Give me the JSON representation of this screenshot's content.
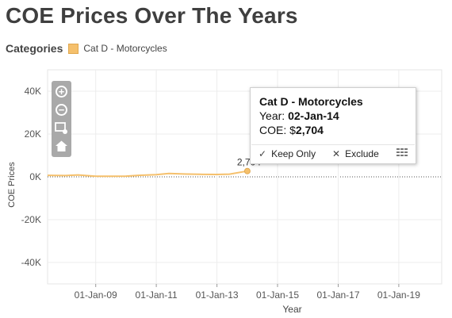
{
  "title": "COE Prices Over The Years",
  "legend": {
    "title": "Categories",
    "items": [
      {
        "label": "Cat D - Motorcycles",
        "color": "#f5c06c"
      }
    ]
  },
  "zoom_tools": [
    {
      "name": "zoom-in",
      "icon": "plus-icon"
    },
    {
      "name": "zoom-out",
      "icon": "minus-icon"
    },
    {
      "name": "area-zoom",
      "icon": "rectangle-zoom-icon"
    },
    {
      "name": "reset-zoom",
      "icon": "home-icon"
    }
  ],
  "tooltip": {
    "title": "Cat D - Motorcycles",
    "year_label": "Year:",
    "year_value": "02-Jan-14",
    "coe_label": "COE: $",
    "coe_value": "2,704",
    "keep_only": "Keep Only",
    "exclude": "Exclude",
    "keep_icon": "checkmark-icon",
    "exclude_icon": "x-icon",
    "table_icon": "view-data-icon"
  },
  "chart_data": {
    "type": "line",
    "title": "",
    "xlabel": "Year",
    "ylabel": "COE Prices",
    "xlim": [
      "2007-06-01",
      "2020-06-01"
    ],
    "ylim": [
      -50000,
      50000
    ],
    "x_ticks": [
      "01-Jan-09",
      "01-Jan-11",
      "01-Jan-13",
      "01-Jan-15",
      "01-Jan-17",
      "01-Jan-19"
    ],
    "y_ticks": [
      -40000,
      -20000,
      0,
      20000,
      40000
    ],
    "y_tick_labels": [
      "-40K",
      "-20K",
      "0K",
      "20K",
      "40K"
    ],
    "grid": true,
    "zero_line": "dotted",
    "series": [
      {
        "name": "Cat D - Motorcycles",
        "color": "#f5c06c",
        "x": [
          "2007-06-01",
          "2008-01-01",
          "2008-06-01",
          "2009-01-01",
          "2009-06-01",
          "2010-01-01",
          "2010-06-01",
          "2011-01-01",
          "2011-06-01",
          "2012-01-01",
          "2012-06-01",
          "2013-01-01",
          "2013-06-01",
          "2014-01-02"
        ],
        "y": [
          700,
          600,
          900,
          300,
          250,
          350,
          700,
          1000,
          1600,
          1300,
          1200,
          1100,
          1250,
          2704
        ]
      }
    ],
    "annotations": [
      {
        "x": "2014-01-02",
        "y": 2704,
        "text": "2,704"
      }
    ]
  }
}
